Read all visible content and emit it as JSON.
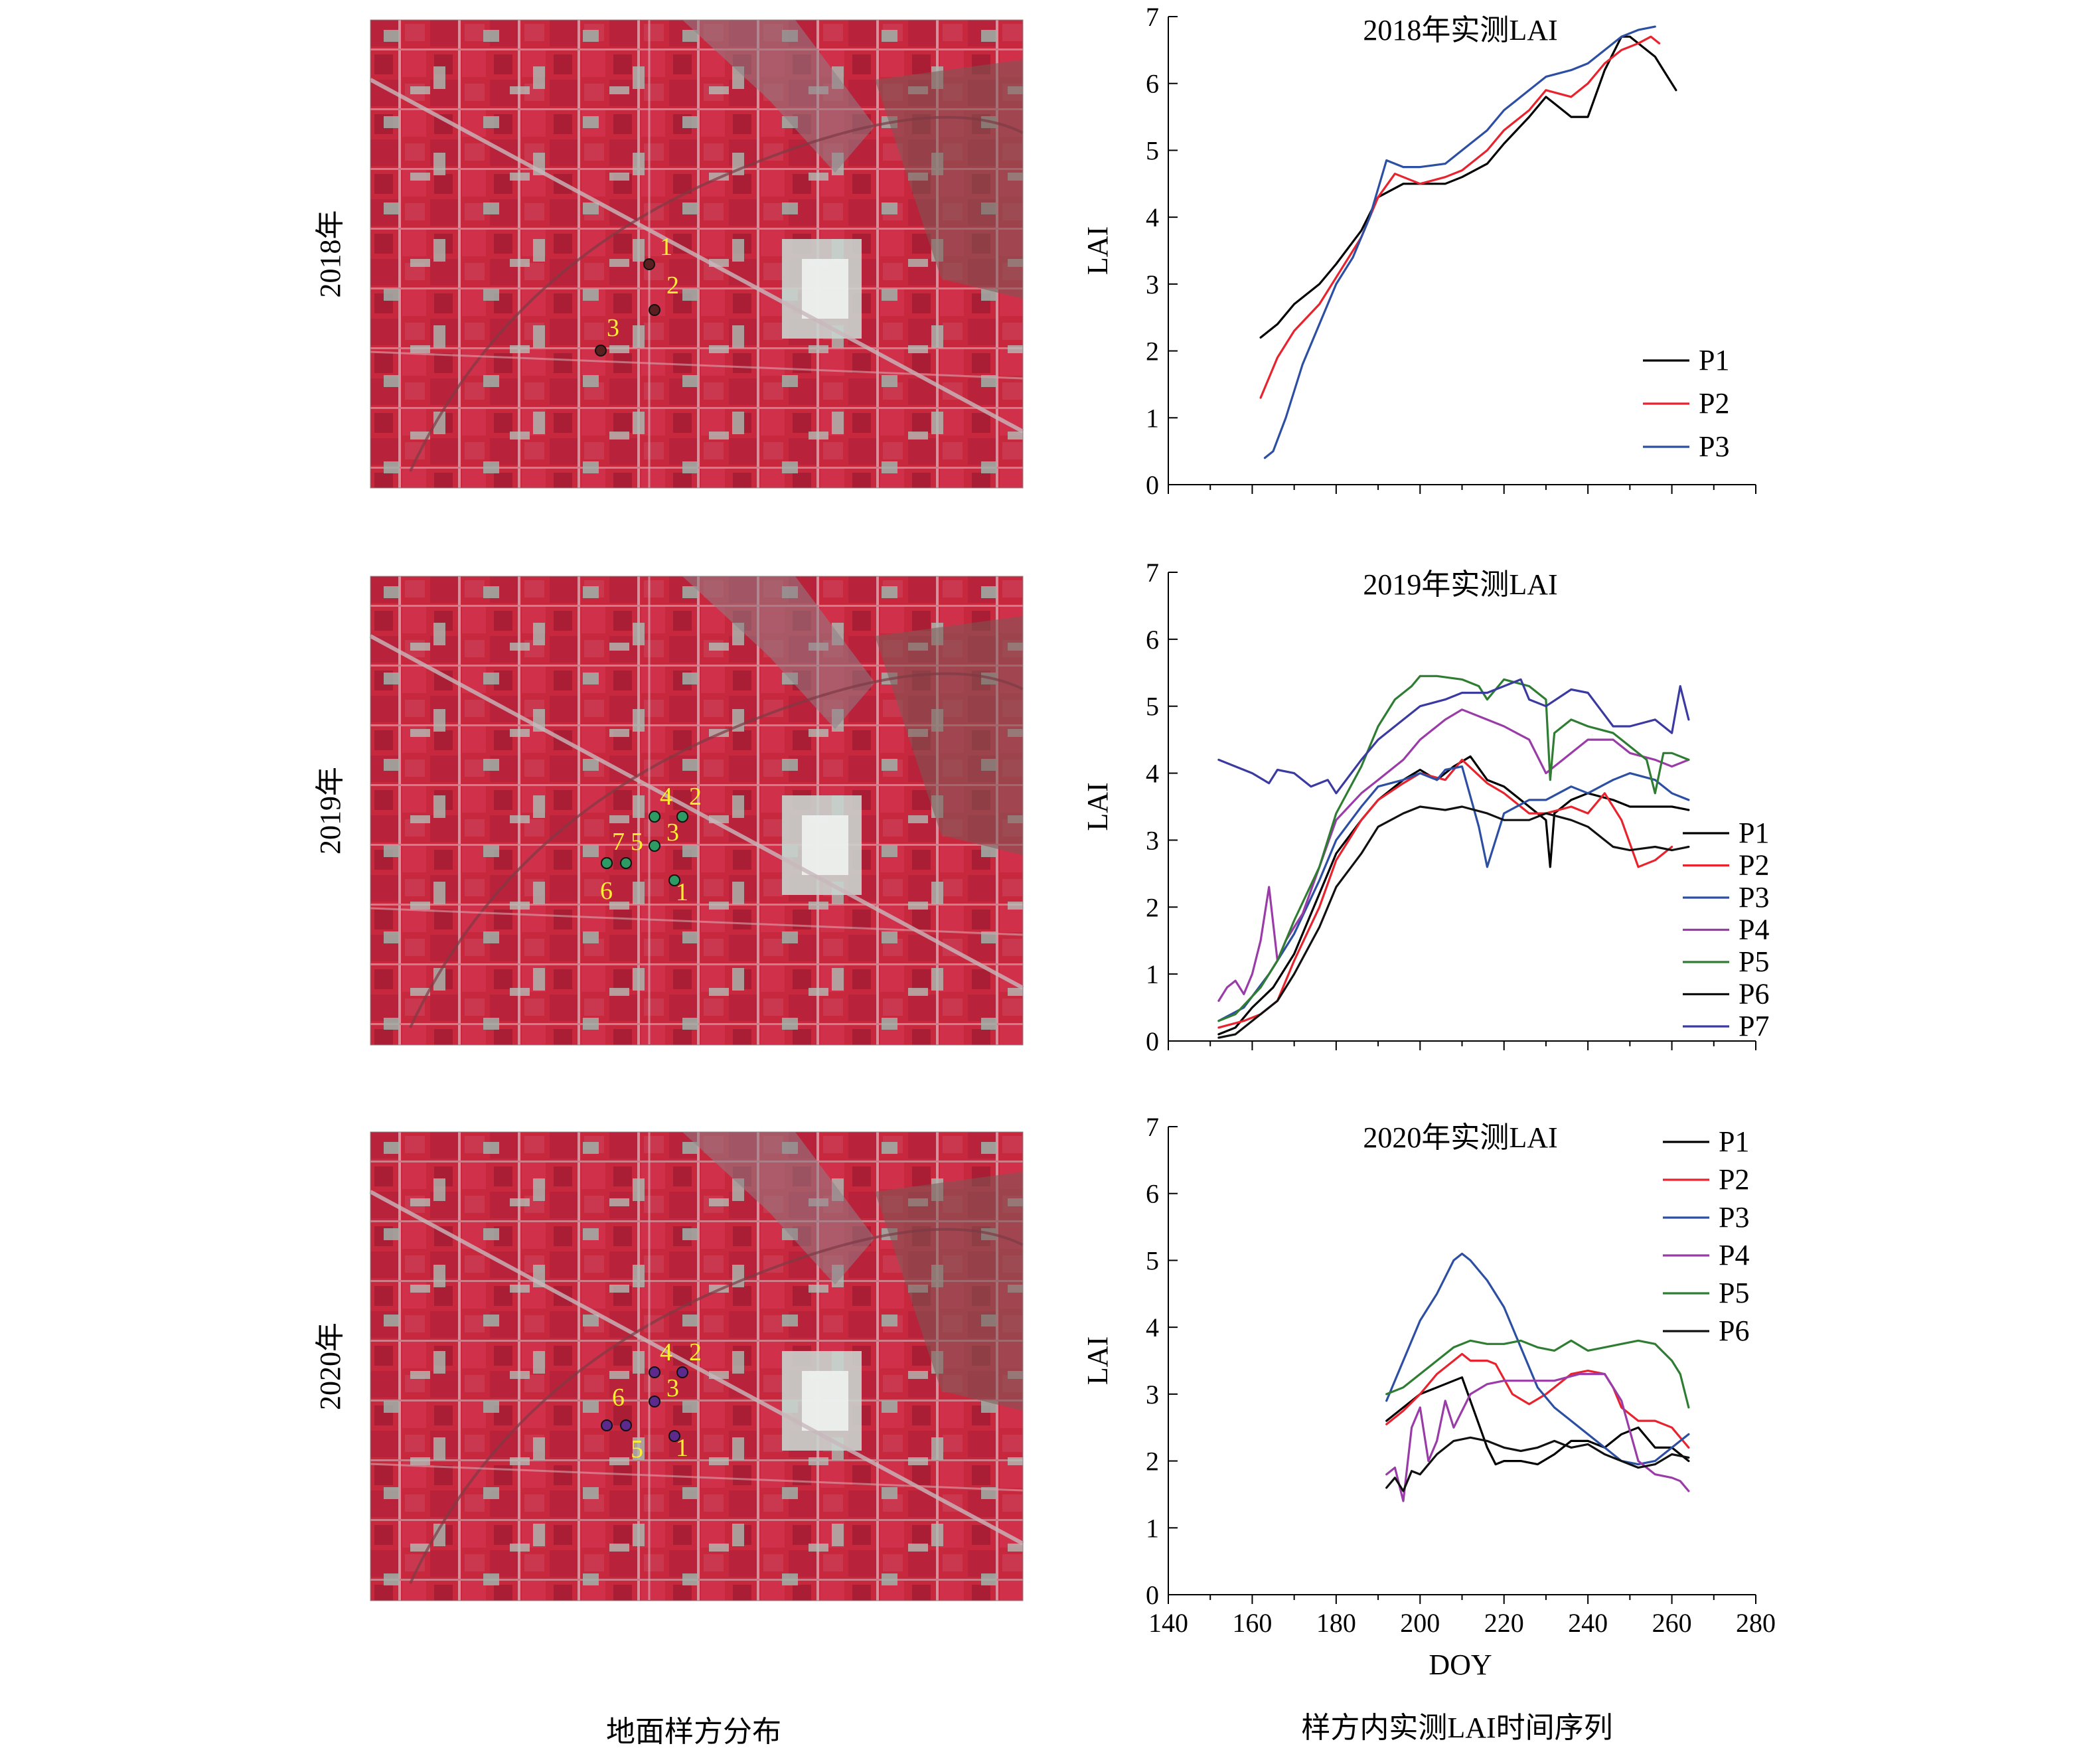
{
  "figure": {
    "left_caption": "地面样方分布",
    "right_caption": "样方内实测LAI时间序列"
  },
  "colors": {
    "field_red": "#c8283e",
    "plot_black": "#000000",
    "plot_red": "#e8232d",
    "plot_blue": "#2d4fa3",
    "plot_purple": "#9a3ca8",
    "plot_green": "#2e7d32",
    "plot_navy": "#3a3aa0",
    "label_yellow": "#ffee33"
  },
  "rows": [
    {
      "year_label": "2018年",
      "map": {
        "marker_color": "#5a1f1f",
        "points": [
          {
            "label": "1"
          },
          {
            "label": "2"
          },
          {
            "label": "3"
          }
        ]
      }
    },
    {
      "year_label": "2019年",
      "map": {
        "marker_color": "#2e9b63",
        "points": [
          {
            "label": "1"
          },
          {
            "label": "2"
          },
          {
            "label": "3"
          },
          {
            "label": "4"
          },
          {
            "label": "5"
          },
          {
            "label": "6"
          },
          {
            "label": "7"
          }
        ]
      }
    },
    {
      "year_label": "2020年",
      "map": {
        "marker_color": "#5b2a8c",
        "points": [
          {
            "label": "1"
          },
          {
            "label": "2"
          },
          {
            "label": "3"
          },
          {
            "label": "4"
          },
          {
            "label": "5"
          },
          {
            "label": "6"
          }
        ]
      }
    }
  ],
  "chart_data": [
    {
      "type": "line",
      "title": "2018年实测LAI",
      "xlabel": "",
      "ylabel": "LAI",
      "xlim": [
        140,
        280
      ],
      "ylim": [
        0,
        7
      ],
      "yticks": [
        0,
        1,
        2,
        3,
        4,
        5,
        6,
        7
      ],
      "xticks": [
        140,
        160,
        180,
        200,
        220,
        240,
        260,
        280
      ],
      "show_xtick_labels": false,
      "legend_position": "right",
      "series": [
        {
          "name": "P1",
          "color": "#000000",
          "x": [
            162,
            166,
            170,
            176,
            180,
            186,
            190,
            196,
            200,
            206,
            210,
            216,
            220,
            226,
            230,
            232,
            236,
            240,
            244,
            248,
            250,
            252,
            256,
            258,
            261
          ],
          "y": [
            2.2,
            2.4,
            2.7,
            3.0,
            3.3,
            3.8,
            4.3,
            4.5,
            4.5,
            4.5,
            4.6,
            4.8,
            5.1,
            5.5,
            5.8,
            5.7,
            5.5,
            5.5,
            6.2,
            6.7,
            6.7,
            6.6,
            6.4,
            6.2,
            5.9
          ]
        },
        {
          "name": "P2",
          "color": "#e8232d",
          "x": [
            162,
            166,
            170,
            176,
            180,
            186,
            190,
            194,
            200,
            206,
            210,
            216,
            220,
            226,
            230,
            236,
            240,
            244,
            248,
            252,
            255,
            257
          ],
          "y": [
            1.3,
            1.9,
            2.3,
            2.7,
            3.1,
            3.7,
            4.3,
            4.65,
            4.5,
            4.6,
            4.7,
            5.0,
            5.3,
            5.6,
            5.9,
            5.8,
            6.0,
            6.3,
            6.5,
            6.6,
            6.7,
            6.6
          ]
        },
        {
          "name": "P3",
          "color": "#2d4fa3",
          "x": [
            163,
            165,
            168,
            172,
            176,
            180,
            184,
            188,
            192,
            196,
            200,
            206,
            210,
            216,
            220,
            226,
            230,
            236,
            240,
            244,
            248,
            252,
            256
          ],
          "y": [
            0.4,
            0.5,
            1.0,
            1.8,
            2.4,
            3.0,
            3.4,
            4.0,
            4.85,
            4.75,
            4.75,
            4.8,
            5.0,
            5.3,
            5.6,
            5.9,
            6.1,
            6.2,
            6.3,
            6.5,
            6.7,
            6.8,
            6.85
          ]
        }
      ]
    },
    {
      "type": "line",
      "title": "2019年实测LAI",
      "xlabel": "",
      "ylabel": "LAI",
      "xlim": [
        140,
        280
      ],
      "ylim": [
        0,
        7
      ],
      "yticks": [
        0,
        1,
        2,
        3,
        4,
        5,
        6,
        7
      ],
      "xticks": [
        140,
        160,
        180,
        200,
        220,
        240,
        260,
        280
      ],
      "show_xtick_labels": false,
      "legend_position": "right",
      "series": [
        {
          "name": "P1",
          "color": "#000000",
          "x": [
            152,
            156,
            160,
            165,
            170,
            176,
            180,
            186,
            190,
            196,
            200,
            204,
            208,
            212,
            216,
            220,
            226,
            230,
            231,
            232,
            236,
            240,
            246,
            250,
            256,
            260,
            264
          ],
          "y": [
            0.1,
            0.2,
            0.5,
            0.8,
            1.3,
            2.2,
            2.8,
            3.3,
            3.6,
            3.9,
            4.05,
            3.9,
            4.1,
            4.25,
            3.9,
            3.8,
            3.5,
            3.3,
            2.6,
            3.4,
            3.6,
            3.7,
            3.6,
            3.5,
            3.5,
            3.5,
            3.45
          ]
        },
        {
          "name": "P2",
          "color": "#e8232d",
          "x": [
            152,
            158,
            162,
            166,
            170,
            176,
            180,
            186,
            190,
            196,
            200,
            206,
            210,
            216,
            220,
            226,
            230,
            236,
            240,
            244,
            248,
            252,
            256,
            260
          ],
          "y": [
            0.2,
            0.3,
            0.4,
            0.6,
            1.2,
            2.0,
            2.7,
            3.3,
            3.6,
            3.85,
            4.0,
            3.9,
            4.2,
            3.85,
            3.7,
            3.4,
            3.4,
            3.5,
            3.4,
            3.7,
            3.3,
            2.6,
            2.7,
            2.9
          ]
        },
        {
          "name": "P3",
          "color": "#2d4fa3",
          "x": [
            152,
            158,
            164,
            170,
            176,
            180,
            186,
            190,
            196,
            200,
            204,
            206,
            210,
            214,
            216,
            220,
            226,
            230,
            236,
            240,
            246,
            250,
            256,
            260,
            264
          ],
          "y": [
            0.3,
            0.5,
            1.0,
            1.6,
            2.4,
            3.0,
            3.5,
            3.8,
            3.9,
            4.0,
            3.9,
            4.05,
            4.1,
            3.2,
            2.6,
            3.4,
            3.6,
            3.6,
            3.8,
            3.7,
            3.9,
            4.0,
            3.9,
            3.7,
            3.6
          ]
        },
        {
          "name": "P4",
          "color": "#9a3ca8",
          "x": [
            152,
            154,
            156,
            158,
            160,
            162,
            164,
            166,
            168,
            170,
            172,
            176,
            180,
            186,
            190,
            196,
            200,
            206,
            210,
            216,
            220,
            226,
            230,
            236,
            240,
            246,
            250,
            256,
            260,
            264
          ],
          "y": [
            0.6,
            0.8,
            0.9,
            0.7,
            1.0,
            1.5,
            2.3,
            1.2,
            1.5,
            1.7,
            1.9,
            2.6,
            3.3,
            3.7,
            3.9,
            4.2,
            4.5,
            4.8,
            4.95,
            4.8,
            4.7,
            4.5,
            4.0,
            4.3,
            4.5,
            4.5,
            4.3,
            4.2,
            4.1,
            4.2
          ]
        },
        {
          "name": "P5",
          "color": "#2e7d32",
          "x": [
            152,
            156,
            162,
            166,
            170,
            176,
            180,
            186,
            190,
            194,
            198,
            200,
            204,
            210,
            214,
            216,
            220,
            226,
            230,
            231,
            232,
            236,
            240,
            246,
            250,
            254,
            256,
            258,
            260,
            264
          ],
          "y": [
            0.3,
            0.4,
            0.8,
            1.2,
            1.8,
            2.6,
            3.4,
            4.1,
            4.7,
            5.1,
            5.3,
            5.45,
            5.45,
            5.4,
            5.3,
            5.1,
            5.4,
            5.3,
            5.1,
            3.9,
            4.6,
            4.8,
            4.7,
            4.6,
            4.4,
            4.2,
            3.7,
            4.3,
            4.3,
            4.2
          ]
        },
        {
          "name": "P6",
          "color": "#111111",
          "x": [
            152,
            156,
            160,
            166,
            170,
            176,
            180,
            186,
            190,
            196,
            200,
            206,
            210,
            216,
            220,
            226,
            230,
            236,
            240,
            246,
            250,
            256,
            260,
            264
          ],
          "y": [
            0.05,
            0.1,
            0.3,
            0.6,
            1.0,
            1.7,
            2.3,
            2.8,
            3.2,
            3.4,
            3.5,
            3.45,
            3.5,
            3.4,
            3.3,
            3.3,
            3.4,
            3.3,
            3.2,
            2.9,
            2.85,
            2.9,
            2.85,
            2.9
          ]
        },
        {
          "name": "P7",
          "color": "#3a3aa0",
          "x": [
            152,
            156,
            160,
            164,
            166,
            170,
            174,
            178,
            180,
            186,
            190,
            196,
            200,
            206,
            210,
            216,
            220,
            224,
            226,
            230,
            236,
            240,
            246,
            250,
            256,
            260,
            262,
            264
          ],
          "y": [
            4.2,
            4.1,
            4.0,
            3.85,
            4.05,
            4.0,
            3.8,
            3.9,
            3.7,
            4.2,
            4.5,
            4.8,
            5.0,
            5.1,
            5.2,
            5.2,
            5.3,
            5.4,
            5.1,
            5.0,
            5.25,
            5.2,
            4.7,
            4.7,
            4.8,
            4.6,
            5.3,
            4.8
          ]
        }
      ]
    },
    {
      "type": "line",
      "title": "2020年实测LAI",
      "xlabel": "DOY",
      "ylabel": "LAI",
      "xlim": [
        140,
        280
      ],
      "ylim": [
        0,
        7
      ],
      "yticks": [
        0,
        1,
        2,
        3,
        4,
        5,
        6,
        7
      ],
      "xticks": [
        140,
        160,
        180,
        200,
        220,
        240,
        260,
        280
      ],
      "show_xtick_labels": true,
      "legend_position": "top-right",
      "series": [
        {
          "name": "P1",
          "color": "#000000",
          "x": [
            192,
            196,
            200,
            204,
            208,
            210,
            212,
            216,
            218,
            220,
            224,
            228,
            232,
            236,
            240,
            244,
            248,
            252,
            256,
            260,
            264
          ],
          "y": [
            2.6,
            2.8,
            3.0,
            3.1,
            3.2,
            3.25,
            2.9,
            2.2,
            1.95,
            2.0,
            2.0,
            1.95,
            2.1,
            2.3,
            2.3,
            2.2,
            2.4,
            2.5,
            2.2,
            2.2,
            2.0
          ]
        },
        {
          "name": "P2",
          "color": "#e8232d",
          "x": [
            192,
            196,
            200,
            204,
            208,
            210,
            212,
            216,
            218,
            222,
            226,
            230,
            236,
            240,
            244,
            246,
            248,
            252,
            256,
            260,
            264
          ],
          "y": [
            2.55,
            2.75,
            3.0,
            3.3,
            3.5,
            3.6,
            3.5,
            3.5,
            3.45,
            3.0,
            2.85,
            3.0,
            3.3,
            3.35,
            3.3,
            3.1,
            2.8,
            2.6,
            2.6,
            2.5,
            2.2
          ]
        },
        {
          "name": "P3",
          "color": "#2d4fa3",
          "x": [
            192,
            196,
            200,
            204,
            208,
            210,
            212,
            216,
            220,
            224,
            228,
            232,
            236,
            240,
            244,
            248,
            252,
            256,
            260,
            264
          ],
          "y": [
            2.9,
            3.5,
            4.1,
            4.5,
            5.0,
            5.1,
            5.0,
            4.7,
            4.3,
            3.7,
            3.1,
            2.8,
            2.6,
            2.4,
            2.2,
            2.0,
            1.95,
            2.0,
            2.2,
            2.4
          ]
        },
        {
          "name": "P4",
          "color": "#9a3ca8",
          "x": [
            192,
            194,
            196,
            198,
            200,
            202,
            204,
            206,
            208,
            212,
            216,
            220,
            226,
            232,
            238,
            244,
            248,
            252,
            256,
            260,
            262,
            264
          ],
          "y": [
            1.8,
            1.9,
            1.4,
            2.5,
            2.8,
            2.0,
            2.3,
            2.9,
            2.5,
            3.0,
            3.15,
            3.2,
            3.2,
            3.2,
            3.3,
            3.3,
            2.9,
            2.0,
            1.8,
            1.75,
            1.7,
            1.55
          ]
        },
        {
          "name": "P5",
          "color": "#2e7d32",
          "x": [
            192,
            196,
            200,
            204,
            208,
            212,
            216,
            220,
            224,
            228,
            232,
            236,
            240,
            244,
            248,
            252,
            256,
            260,
            262,
            264
          ],
          "y": [
            3.0,
            3.1,
            3.3,
            3.5,
            3.7,
            3.8,
            3.75,
            3.75,
            3.8,
            3.7,
            3.65,
            3.8,
            3.65,
            3.7,
            3.75,
            3.8,
            3.75,
            3.5,
            3.3,
            2.8
          ]
        },
        {
          "name": "P6",
          "color": "#111111",
          "x": [
            192,
            194,
            196,
            198,
            200,
            204,
            208,
            212,
            216,
            220,
            224,
            228,
            232,
            236,
            240,
            244,
            248,
            252,
            256,
            260,
            264
          ],
          "y": [
            1.6,
            1.75,
            1.55,
            1.85,
            1.8,
            2.1,
            2.3,
            2.35,
            2.3,
            2.2,
            2.15,
            2.2,
            2.3,
            2.2,
            2.25,
            2.1,
            2.0,
            1.9,
            1.95,
            2.1,
            2.05
          ]
        }
      ]
    }
  ]
}
